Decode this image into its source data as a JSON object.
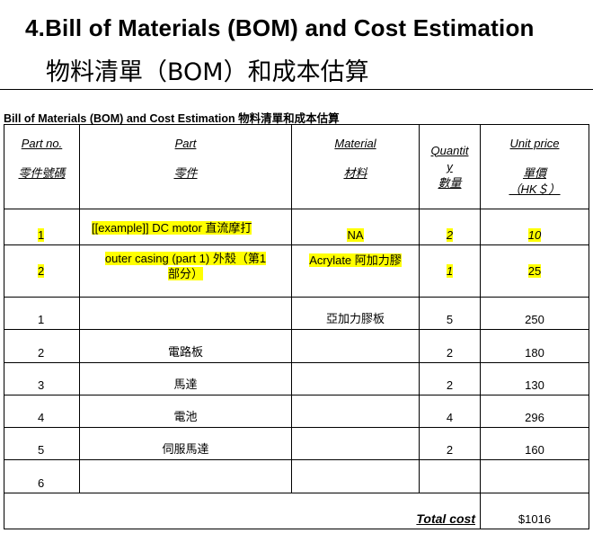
{
  "heading": {
    "title_en": "4.Bill of Materials (BOM) and Cost Estimation",
    "title_zh": "物料清單（BOM）和成本估算"
  },
  "caption": "Bill of Materials (BOM) and Cost Estimation 物料清單和成本估算",
  "table": {
    "headers": {
      "part_no": "Part no.",
      "part_no_zh": "零件號碼",
      "part": "Part",
      "part_zh": "零件",
      "material": "Material",
      "material_zh": "材料",
      "quantity_a": "Quantit",
      "quantity_b": "y",
      "quantity_zh": "數量",
      "unit_price": "Unit price",
      "unit_price_zh": "單價",
      "unit_price_unit": "（HK＄）"
    },
    "example_rows": [
      {
        "no": "1",
        "part": "[[example]] DC motor 直流摩打",
        "material": "NA",
        "qty": "2",
        "price": "10"
      },
      {
        "no": "2",
        "part_line1": "outer casing (part 1) 外殼（第1",
        "part_line2": "部分）",
        "material": "Acrylate 阿加力膠",
        "qty": "1",
        "price": "25"
      }
    ],
    "rows": [
      {
        "no": "1",
        "part": "",
        "material": "亞加力膠板",
        "qty": "5",
        "price": "250"
      },
      {
        "no": "2",
        "part": "電路板",
        "material": "",
        "qty": "2",
        "price": "180"
      },
      {
        "no": "3",
        "part": "馬達",
        "material": "",
        "qty": "2",
        "price": "130"
      },
      {
        "no": "4",
        "part": "電池",
        "material": "",
        "qty": "4",
        "price": "296"
      },
      {
        "no": "5",
        "part": "伺服馬達",
        "material": "",
        "qty": "2",
        "price": "160"
      },
      {
        "no": "6",
        "part": "",
        "material": "",
        "qty": "",
        "price": ""
      }
    ],
    "total_label": "Total cost",
    "total_value": "$1016"
  },
  "colors": {
    "highlight": "#ffff00"
  }
}
